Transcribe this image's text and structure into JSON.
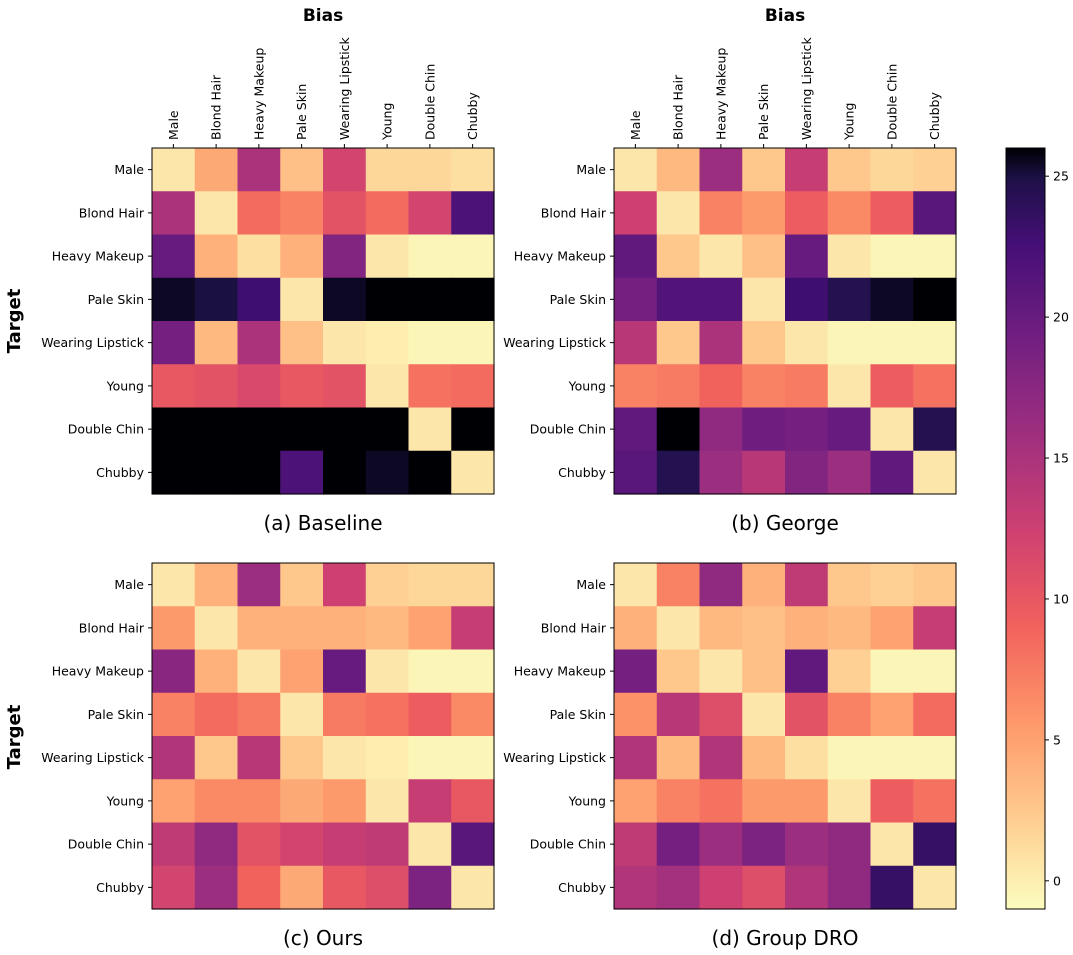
{
  "figure": {
    "row_label": "Target",
    "col_label": "Bias",
    "categories": [
      "Male",
      "Blond Hair",
      "Heavy Makeup",
      "Pale Skin",
      "Wearing Lipstick",
      "Young",
      "Double Chin",
      "Chubby"
    ],
    "colorbar": {
      "ticks": [
        0,
        5,
        10,
        15,
        20,
        25
      ],
      "range": [
        -1,
        26
      ],
      "colormap": "magma_r"
    }
  },
  "chart_data": [
    {
      "type": "heatmap",
      "title": "(a) Baseline",
      "xlabel": "Bias",
      "ylabel": "Target",
      "x": [
        "Male",
        "Blond Hair",
        "Heavy Makeup",
        "Pale Skin",
        "Wearing Lipstick",
        "Young",
        "Double Chin",
        "Chubby"
      ],
      "y": [
        "Male",
        "Blond Hair",
        "Heavy Makeup",
        "Pale Skin",
        "Wearing Lipstick",
        "Young",
        "Double Chin",
        "Chubby"
      ],
      "vmin": -1,
      "vmax": 26,
      "values": [
        [
          0.5,
          4.5,
          15,
          3,
          12,
          1.5,
          1.5,
          1
        ],
        [
          15,
          0.5,
          8.5,
          7,
          10.5,
          8.5,
          12,
          22
        ],
        [
          20,
          4,
          1,
          4,
          18,
          0.5,
          -0.5,
          -0.5
        ],
        [
          25.5,
          25,
          23,
          0.5,
          25.5,
          26,
          26,
          26
        ],
        [
          19,
          3.5,
          15,
          3,
          0.5,
          0,
          -0.5,
          -0.5
        ],
        [
          10,
          10.5,
          11.5,
          10,
          10.5,
          0.5,
          8,
          8.5
        ],
        [
          26,
          26,
          26,
          26,
          26,
          26,
          0.5,
          26
        ],
        [
          26,
          26,
          26,
          22,
          26,
          25.5,
          26,
          0.5
        ]
      ]
    },
    {
      "type": "heatmap",
      "title": "(b) George",
      "xlabel": "Bias",
      "ylabel": "Target",
      "x": [
        "Male",
        "Blond Hair",
        "Heavy Makeup",
        "Pale Skin",
        "Wearing Lipstick",
        "Young",
        "Double Chin",
        "Chubby"
      ],
      "y": [
        "Male",
        "Blond Hair",
        "Heavy Makeup",
        "Pale Skin",
        "Wearing Lipstick",
        "Young",
        "Double Chin",
        "Chubby"
      ],
      "vmin": -1,
      "vmax": 26,
      "values": [
        [
          0.5,
          3.5,
          16,
          2.5,
          13,
          2.5,
          1.5,
          2
        ],
        [
          12.5,
          0.5,
          7,
          5.5,
          9.5,
          6.5,
          9.5,
          21
        ],
        [
          20.5,
          2.5,
          0.5,
          3,
          20,
          0.5,
          -0.5,
          -0.5
        ],
        [
          19,
          21.5,
          21.5,
          0.5,
          23,
          24.5,
          25.5,
          26
        ],
        [
          14,
          2.5,
          15,
          2.5,
          0.5,
          -0.5,
          -0.5,
          -0.5
        ],
        [
          7,
          7.5,
          9,
          7,
          7.5,
          0.5,
          9.5,
          8
        ],
        [
          20.5,
          26,
          17,
          19.5,
          19,
          20,
          0.5,
          24.5
        ],
        [
          21,
          24.5,
          16,
          14,
          18,
          16,
          20.5,
          0.5
        ]
      ]
    },
    {
      "type": "heatmap",
      "title": "(c) Ours",
      "xlabel": "Bias",
      "ylabel": "Target",
      "x": [
        "Male",
        "Blond Hair",
        "Heavy Makeup",
        "Pale Skin",
        "Wearing Lipstick",
        "Young",
        "Double Chin",
        "Chubby"
      ],
      "y": [
        "Male",
        "Blond Hair",
        "Heavy Makeup",
        "Pale Skin",
        "Wearing Lipstick",
        "Young",
        "Double Chin",
        "Chubby"
      ],
      "vmin": -1,
      "vmax": 26,
      "values": [
        [
          0.5,
          4,
          16,
          2.5,
          12.5,
          2,
          1.5,
          1.5
        ],
        [
          5.5,
          0.5,
          4,
          4,
          4,
          3.5,
          5,
          13
        ],
        [
          17.5,
          4,
          0.5,
          5,
          20,
          0.5,
          -0.5,
          -0.5
        ],
        [
          7,
          8.5,
          7.5,
          0.5,
          7.5,
          8,
          9.5,
          6.5
        ],
        [
          14.5,
          2.5,
          14,
          2.5,
          0.5,
          0,
          -0.5,
          -0.5
        ],
        [
          5,
          6.5,
          6.5,
          4.5,
          5.5,
          0.5,
          13,
          10
        ],
        [
          13.5,
          17,
          10.5,
          12,
          13,
          13.5,
          0.5,
          21
        ],
        [
          12,
          16,
          9,
          4.5,
          10,
          11,
          18.5,
          0.5
        ]
      ]
    },
    {
      "type": "heatmap",
      "title": "(d) Group DRO",
      "xlabel": "Bias",
      "ylabel": "Target",
      "x": [
        "Male",
        "Blond Hair",
        "Heavy Makeup",
        "Pale Skin",
        "Wearing Lipstick",
        "Young",
        "Double Chin",
        "Chubby"
      ],
      "y": [
        "Male",
        "Blond Hair",
        "Heavy Makeup",
        "Pale Skin",
        "Wearing Lipstick",
        "Young",
        "Double Chin",
        "Chubby"
      ],
      "vmin": -1,
      "vmax": 26,
      "values": [
        [
          0.5,
          7,
          17,
          4,
          13.5,
          2.5,
          2,
          2.5
        ],
        [
          4,
          0.5,
          3.5,
          3,
          4,
          3.5,
          5,
          13
        ],
        [
          19,
          2.5,
          0.5,
          3,
          20.5,
          2,
          -0.5,
          -0.5
        ],
        [
          6,
          14,
          11,
          0.5,
          10.5,
          7,
          5,
          8.5
        ],
        [
          14.5,
          3.5,
          14.5,
          3.5,
          1,
          -0.5,
          -0.5,
          -0.5
        ],
        [
          5,
          7,
          8,
          5.5,
          5.5,
          0.5,
          9.5,
          8
        ],
        [
          13.5,
          19,
          16,
          18.5,
          16,
          17,
          0.5,
          23.5
        ],
        [
          14.5,
          15.5,
          12.5,
          11,
          14.5,
          17,
          23.5,
          0.5
        ]
      ]
    }
  ]
}
